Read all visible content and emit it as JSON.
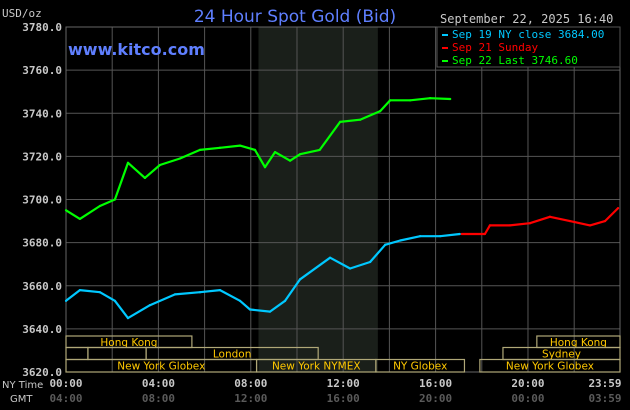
{
  "chart_data": {
    "type": "line",
    "title": "24 Hour Spot Gold (Bid)",
    "watermark": "www.kitco.com",
    "ylabel": "USD/oz",
    "date_label": "September 22, 2025 16:40",
    "ylim": [
      3620,
      3780
    ],
    "y_ticks": [
      "3780.0",
      "3760.0",
      "3740.0",
      "3720.0",
      "3700.0",
      "3680.0",
      "3660.0",
      "3640.0",
      "3620.0"
    ],
    "x_axis_label_ny": "NY Time",
    "x_axis_label_gmt": "GMT",
    "x_ticks_ny": [
      "00:00",
      "04:00",
      "08:00",
      "12:00",
      "16:00",
      "20:00",
      "23:59"
    ],
    "x_ticks_gmt": [
      "04:00",
      "08:00",
      "12:00",
      "16:00",
      "20:00",
      "00:00",
      "03:59"
    ],
    "grid": true,
    "shaded_session": [
      "08:20",
      "13:30"
    ],
    "legend_position": "top-right",
    "series": [
      {
        "name": "Sep 19 NY close 3684.00",
        "color": "#00c8ff",
        "x": [
          "00:00",
          "00:36",
          "01:28",
          "02:07",
          "02:41",
          "03:38",
          "04:43",
          "05:48",
          "06:40",
          "07:32",
          "07:58",
          "08:50",
          "09:29",
          "10:08",
          "11:26",
          "12:18",
          "13:10",
          "13:49",
          "14:28",
          "15:20",
          "16:12",
          "17:03"
        ],
        "y": [
          3653,
          3658,
          3657,
          3653,
          3645,
          3651,
          3656,
          3657,
          3658,
          3653,
          3649,
          3648,
          3653,
          3663,
          3673,
          3668,
          3671,
          3679,
          3681,
          3683,
          3683,
          3684
        ]
      },
      {
        "name": "Sep 21 Sunday",
        "color": "#ff0000",
        "x": [
          "17:08",
          "18:08",
          "18:21",
          "19:13",
          "20:05",
          "20:57",
          "21:49",
          "22:41",
          "23:20",
          "23:54"
        ],
        "y": [
          3684,
          3684,
          3688,
          3688,
          3689,
          3692,
          3690,
          3688,
          3690,
          3696
        ]
      },
      {
        "name": "Sep 22 Last 3746.60",
        "color": "#00ff00",
        "x": [
          "00:00",
          "00:36",
          "01:28",
          "02:07",
          "02:41",
          "03:25",
          "04:04",
          "04:56",
          "05:48",
          "06:40",
          "07:32",
          "08:11",
          "08:37",
          "09:03",
          "09:42",
          "10:08",
          "10:59",
          "11:52",
          "12:44",
          "13:36",
          "14:02",
          "14:54",
          "15:46",
          "16:38"
        ],
        "y": [
          3695,
          3691,
          3697,
          3700,
          3717,
          3710,
          3716,
          3719,
          3723,
          3724,
          3725,
          3723,
          3715,
          3722,
          3718,
          3721,
          3723,
          3736,
          3737,
          3741,
          3746,
          3746,
          3747,
          3746.6
        ]
      }
    ],
    "sessions": [
      {
        "row": 0,
        "label": "Hong Kong",
        "start": "00:00",
        "end": "05:27"
      },
      {
        "row": 0,
        "label": "Hong Kong",
        "start": "20:23",
        "end": "23:59"
      },
      {
        "row": 1,
        "label": "",
        "start": "00:00",
        "end": "00:57"
      },
      {
        "row": 1,
        "label": "",
        "start": "00:57",
        "end": "03:28"
      },
      {
        "row": 1,
        "label": "London",
        "start": "03:28",
        "end": "10:55"
      },
      {
        "row": 1,
        "label": "Sydney",
        "start": "18:55",
        "end": "23:59"
      },
      {
        "row": 2,
        "label": "New York Globex",
        "start": "00:00",
        "end": "08:15"
      },
      {
        "row": 2,
        "label": "New York NYMEX",
        "start": "08:15",
        "end": "13:25"
      },
      {
        "row": 2,
        "label": "NY Globex",
        "start": "13:25",
        "end": "17:15"
      },
      {
        "row": 2,
        "label": "New York Globex",
        "start": "17:55",
        "end": "23:59"
      }
    ]
  }
}
